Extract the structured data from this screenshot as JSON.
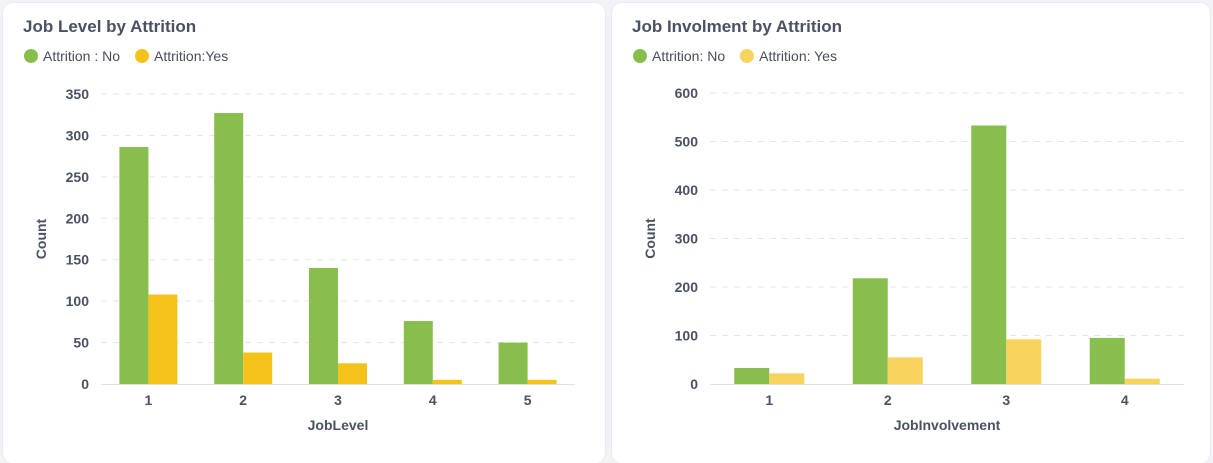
{
  "chart_data": [
    {
      "type": "bar",
      "title": "Job Level by Attrition",
      "xlabel": "JobLevel",
      "ylabel": "Count",
      "categories": [
        "1",
        "2",
        "3",
        "4",
        "5"
      ],
      "series": [
        {
          "name": "Attrition : No",
          "color": "#88be4e",
          "values": [
            286,
            327,
            140,
            76,
            50
          ]
        },
        {
          "name": "Attrition:Yes",
          "color": "#f5c21a",
          "values": [
            108,
            38,
            25,
            5,
            5
          ]
        }
      ],
      "ylim": [
        0,
        350
      ],
      "yticks": [
        0,
        50,
        100,
        150,
        200,
        250,
        300,
        350
      ],
      "grid": true,
      "legend": "top-left"
    },
    {
      "type": "bar",
      "title": "Job Involment by Attrition",
      "xlabel": "JobInvolvement",
      "ylabel": "Count",
      "categories": [
        "1",
        "2",
        "3",
        "4"
      ],
      "series": [
        {
          "name": "Attrition: No",
          "color": "#88be4e",
          "values": [
            33,
            218,
            533,
            95
          ]
        },
        {
          "name": "Attrition: Yes",
          "color": "#f6d45d",
          "values": [
            22,
            55,
            92,
            11
          ]
        }
      ],
      "ylim": [
        0,
        600
      ],
      "yticks": [
        0,
        100,
        200,
        300,
        400,
        500,
        600
      ],
      "grid": true,
      "legend": "top-left"
    }
  ]
}
